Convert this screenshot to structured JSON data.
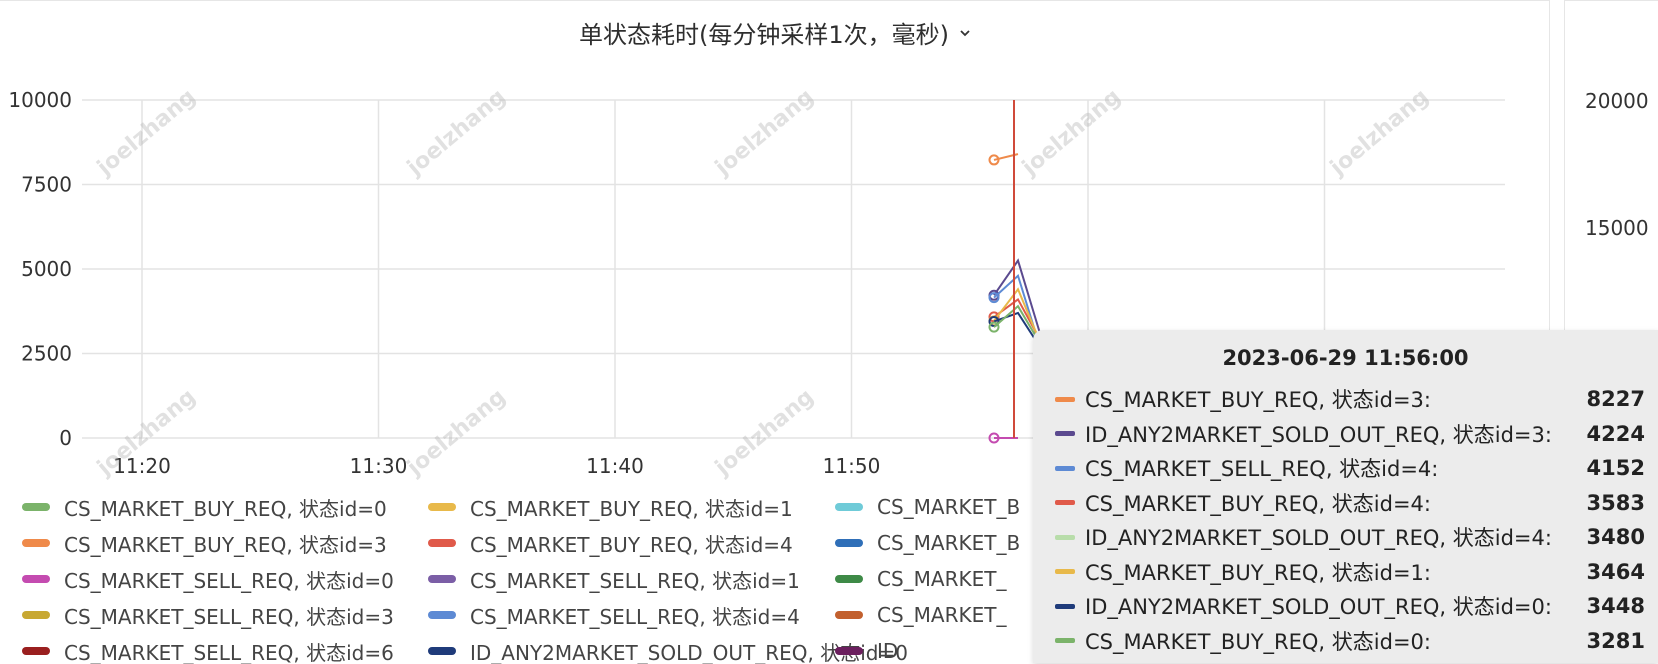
{
  "panel": {
    "title": "单状态耗时(每分钟采样1次，毫秒)",
    "menu_icon": "chevron-down-icon"
  },
  "watermark": "joelzhang",
  "chart_data": {
    "type": "line",
    "y_ticks": [
      "10000",
      "7500",
      "5000",
      "2500",
      "0"
    ],
    "x_ticks": [
      "11:20",
      "11:30",
      "11:40",
      "11:50"
    ],
    "ylim": [
      0,
      10000
    ],
    "hover_time": "11:56",
    "series": [
      {
        "name": "CS_MARKET_BUY_REQ, 状态id=3",
        "color": "#ef8a4a",
        "points": [
          [
            8227
          ],
          [
            8400
          ]
        ]
      },
      {
        "name": "ID_ANY2MARKET_SOLD_OUT_REQ, 状态id=3",
        "color": "#5b4a8f",
        "points": [
          [
            4224
          ],
          [
            5250
          ],
          [
            2900
          ]
        ]
      },
      {
        "name": "CS_MARKET_SELL_REQ, 状态id=4",
        "color": "#5d8ad4",
        "points": [
          [
            4152
          ],
          [
            4800
          ],
          [
            2500
          ]
        ]
      },
      {
        "name": "CS_MARKET_BUY_REQ, 状态id=4",
        "color": "#e05a4a",
        "points": [
          [
            3583
          ],
          [
            4100
          ],
          [
            2800
          ]
        ]
      },
      {
        "name": "CS_MARKET_BUY_REQ, 状态id=1",
        "color": "#e8b94a",
        "points": [
          [
            3464
          ],
          [
            4400
          ],
          [
            2700
          ]
        ]
      },
      {
        "name": "ID_ANY2MARKET_SOLD_OUT_REQ, 状态id=0",
        "color": "#1f3b7a",
        "points": [
          [
            3448
          ],
          [
            3700
          ],
          [
            2600
          ]
        ]
      },
      {
        "name": "CS_MARKET_BUY_REQ, 状态id=0",
        "color": "#7bb36a",
        "points": [
          [
            3281
          ],
          [
            3900
          ],
          [
            2700
          ]
        ]
      },
      {
        "name": "CS_MARKET_SELL_REQ, 状态id=0",
        "color": "#c44bb0",
        "points": [
          [
            0
          ],
          [
            0
          ]
        ]
      }
    ]
  },
  "legend": [
    {
      "label": "CS_MARKET_BUY_REQ, 状态id=0",
      "color": "#7bb36a"
    },
    {
      "label": "CS_MARKET_BUY_REQ, 状态id=1",
      "color": "#e8b94a"
    },
    {
      "label": "CS_MARKET_B",
      "color": "#6fcbd8"
    },
    {
      "label": "CS_MARKET_BUY_REQ, 状态id=3",
      "color": "#ef8a4a"
    },
    {
      "label": "CS_MARKET_BUY_REQ, 状态id=4",
      "color": "#e05a4a"
    },
    {
      "label": "CS_MARKET_B",
      "color": "#2f6fb8"
    },
    {
      "label": "CS_MARKET_SELL_REQ, 状态id=0",
      "color": "#c44bb0"
    },
    {
      "label": "CS_MARKET_SELL_REQ, 状态id=1",
      "color": "#7b5ea6"
    },
    {
      "label": "CS_MARKET_",
      "color": "#3e8a47"
    },
    {
      "label": "CS_MARKET_SELL_REQ, 状态id=3",
      "color": "#c8a832"
    },
    {
      "label": "CS_MARKET_SELL_REQ, 状态id=4",
      "color": "#5d8ad4"
    },
    {
      "label": "CS_MARKET_",
      "color": "#c2602e"
    },
    {
      "label": "CS_MARKET_SELL_REQ, 状态id=6",
      "color": "#9a1f1f"
    },
    {
      "label": "ID_ANY2MARKET_SOLD_OUT_REQ, 状态id=0",
      "color": "#1f3b7a"
    },
    {
      "label": "ID",
      "color": "#6b1f5e"
    }
  ],
  "tooltip": {
    "title": "2023-06-29 11:56:00",
    "rows": [
      {
        "name": "CS_MARKET_BUY_REQ, 状态id=3:",
        "value": "8227",
        "color": "#ef8a4a"
      },
      {
        "name": "ID_ANY2MARKET_SOLD_OUT_REQ, 状态id=3:",
        "value": "4224",
        "color": "#5b4a8f"
      },
      {
        "name": "CS_MARKET_SELL_REQ, 状态id=4:",
        "value": "4152",
        "color": "#5d8ad4"
      },
      {
        "name": "CS_MARKET_BUY_REQ, 状态id=4:",
        "value": "3583",
        "color": "#e05a4a"
      },
      {
        "name": "ID_ANY2MARKET_SOLD_OUT_REQ, 状态id=4:",
        "value": "3480",
        "color": "#b8ddaa"
      },
      {
        "name": "CS_MARKET_BUY_REQ, 状态id=1:",
        "value": "3464",
        "color": "#e8b94a"
      },
      {
        "name": "ID_ANY2MARKET_SOLD_OUT_REQ, 状态id=0:",
        "value": "3448",
        "color": "#1f3b7a"
      },
      {
        "name": "CS_MARKET_BUY_REQ, 状态id=0:",
        "value": "3281",
        "color": "#7bb36a"
      }
    ]
  },
  "right_panel": {
    "y_ticks": [
      "20000",
      "15000"
    ]
  }
}
